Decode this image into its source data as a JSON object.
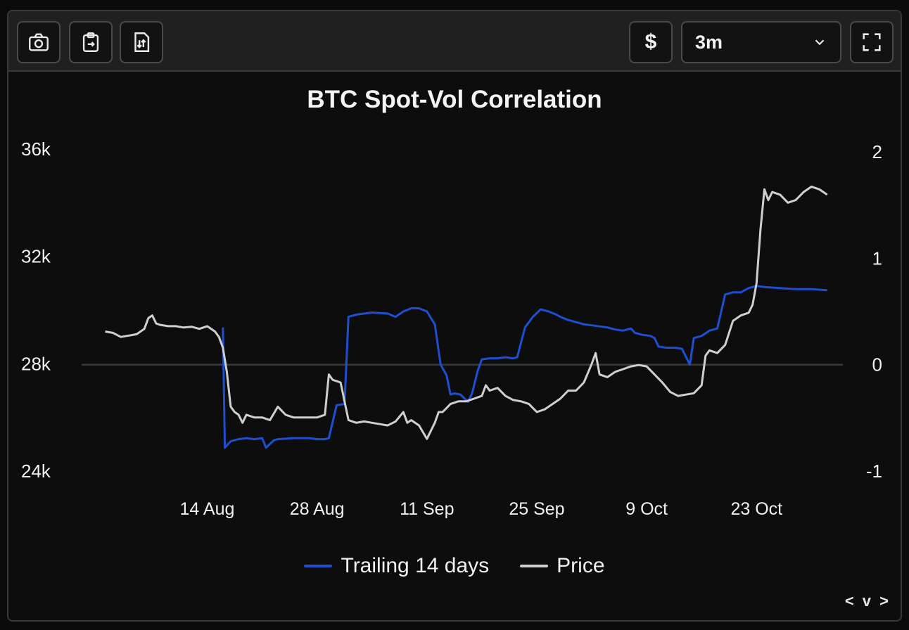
{
  "toolbar": {
    "left_icons": [
      "camera-icon",
      "clipboard-icon",
      "download-icon"
    ],
    "currency_label": "$",
    "range": {
      "selected": "3m"
    },
    "fullscreen_icon": "fullscreen-icon"
  },
  "chart_data": {
    "type": "line",
    "title": "BTC Spot-Vol Correlation",
    "x_ticks": [
      "14 Aug",
      "28 Aug",
      "11 Sep",
      "25 Sep",
      "9 Oct",
      "23 Oct"
    ],
    "y_left_ticks": [
      "36k",
      "32k",
      "28k",
      "24k"
    ],
    "y_right_ticks": [
      "2",
      "1",
      "0",
      "-1"
    ],
    "y_left_range": [
      24000,
      36000
    ],
    "y_right_range": [
      -1,
      2
    ],
    "zero_line": true,
    "legend_position": "bottom",
    "series": [
      {
        "name": "Trailing 14 days",
        "axis": "right",
        "color": "#1f4fd1",
        "points": [
          [
            "2023-08-16T00",
            0.35
          ],
          [
            "2023-08-16T06",
            -0.78
          ],
          [
            "2023-08-17T00",
            -0.72
          ],
          [
            "2023-08-18T00",
            -0.7
          ],
          [
            "2023-08-19T00",
            -0.69
          ],
          [
            "2023-08-20T00",
            -0.7
          ],
          [
            "2023-08-21T00",
            -0.69
          ],
          [
            "2023-08-21T12",
            -0.78
          ],
          [
            "2023-08-22T12",
            -0.71
          ],
          [
            "2023-08-23T00",
            -0.7
          ],
          [
            "2023-08-25T00",
            -0.69
          ],
          [
            "2023-08-27T00",
            -0.69
          ],
          [
            "2023-08-28T00",
            -0.7
          ],
          [
            "2023-08-29T00",
            -0.7
          ],
          [
            "2023-08-29T12",
            -0.69
          ],
          [
            "2023-08-30T12",
            -0.38
          ],
          [
            "2023-08-31T12",
            -0.37
          ],
          [
            "2023-09-01T00",
            0.45
          ],
          [
            "2023-09-02T00",
            0.47
          ],
          [
            "2023-09-04T00",
            0.49
          ],
          [
            "2023-09-06T00",
            0.48
          ],
          [
            "2023-09-07T00",
            0.45
          ],
          [
            "2023-09-08T00",
            0.5
          ],
          [
            "2023-09-09T00",
            0.53
          ],
          [
            "2023-09-10T00",
            0.53
          ],
          [
            "2023-09-11T00",
            0.5
          ],
          [
            "2023-09-12T00",
            0.38
          ],
          [
            "2023-09-12T18",
            0.0
          ],
          [
            "2023-09-13T12",
            -0.1
          ],
          [
            "2023-09-14T00",
            -0.28
          ],
          [
            "2023-09-14T12",
            -0.27
          ],
          [
            "2023-09-15T06",
            -0.28
          ],
          [
            "2023-09-16T06",
            -0.35
          ],
          [
            "2023-09-16T18",
            -0.27
          ],
          [
            "2023-09-17T12",
            -0.05
          ],
          [
            "2023-09-18T00",
            0.05
          ],
          [
            "2023-09-19T00",
            0.06
          ],
          [
            "2023-09-20T00",
            0.06
          ],
          [
            "2023-09-21T00",
            0.07
          ],
          [
            "2023-09-22T00",
            0.06
          ],
          [
            "2023-09-22T12",
            0.07
          ],
          [
            "2023-09-23T12",
            0.35
          ],
          [
            "2023-09-24T12",
            0.45
          ],
          [
            "2023-09-25T12",
            0.52
          ],
          [
            "2023-09-26T12",
            0.5
          ],
          [
            "2023-09-27T12",
            0.47
          ],
          [
            "2023-09-28T00",
            0.45
          ],
          [
            "2023-09-29T00",
            0.42
          ],
          [
            "2023-10-01T00",
            0.38
          ],
          [
            "2023-10-03T00",
            0.36
          ],
          [
            "2023-10-04T00",
            0.35
          ],
          [
            "2023-10-05T00",
            0.33
          ],
          [
            "2023-10-06T00",
            0.32
          ],
          [
            "2023-10-07T00",
            0.34
          ],
          [
            "2023-10-07T12",
            0.3
          ],
          [
            "2023-10-08T12",
            0.28
          ],
          [
            "2023-10-09T12",
            0.27
          ],
          [
            "2023-10-10T00",
            0.25
          ],
          [
            "2023-10-10T12",
            0.17
          ],
          [
            "2023-10-11T12",
            0.16
          ],
          [
            "2023-10-12T12",
            0.16
          ],
          [
            "2023-10-13T12",
            0.15
          ],
          [
            "2023-10-14T12",
            0.0
          ],
          [
            "2023-10-15T00",
            0.25
          ],
          [
            "2023-10-16T00",
            0.27
          ],
          [
            "2023-10-17T00",
            0.32
          ],
          [
            "2023-10-18T00",
            0.34
          ],
          [
            "2023-10-19T00",
            0.66
          ],
          [
            "2023-10-20T00",
            0.68
          ],
          [
            "2023-10-21T00",
            0.68
          ],
          [
            "2023-10-22T00",
            0.72
          ],
          [
            "2023-10-23T00",
            0.74
          ],
          [
            "2023-10-24T00",
            0.73
          ],
          [
            "2023-10-26T00",
            0.72
          ],
          [
            "2023-10-28T00",
            0.71
          ],
          [
            "2023-10-30T00",
            0.71
          ],
          [
            "2023-11-01T00",
            0.7
          ]
        ]
      },
      {
        "name": "Price",
        "axis": "left",
        "color": "#cfcfcf",
        "points": [
          [
            "2023-08-01T00",
            29200
          ],
          [
            "2023-08-02T00",
            29150
          ],
          [
            "2023-08-03T00",
            29000
          ],
          [
            "2023-08-04T00",
            29050
          ],
          [
            "2023-08-05T00",
            29100
          ],
          [
            "2023-08-06T00",
            29300
          ],
          [
            "2023-08-06T12",
            29700
          ],
          [
            "2023-08-07T00",
            29800
          ],
          [
            "2023-08-07T12",
            29500
          ],
          [
            "2023-08-08T00",
            29450
          ],
          [
            "2023-08-09T00",
            29400
          ],
          [
            "2023-08-10T00",
            29400
          ],
          [
            "2023-08-11T00",
            29350
          ],
          [
            "2023-08-12T00",
            29380
          ],
          [
            "2023-08-13T00",
            29300
          ],
          [
            "2023-08-14T00",
            29400
          ],
          [
            "2023-08-15T00",
            29200
          ],
          [
            "2023-08-15T12",
            29000
          ],
          [
            "2023-08-16T00",
            28600
          ],
          [
            "2023-08-16T12",
            27700
          ],
          [
            "2023-08-17T00",
            26400
          ],
          [
            "2023-08-17T12",
            26200
          ],
          [
            "2023-08-18T00",
            26100
          ],
          [
            "2023-08-18T12",
            25800
          ],
          [
            "2023-08-19T00",
            26100
          ],
          [
            "2023-08-20T00",
            26000
          ],
          [
            "2023-08-21T00",
            26000
          ],
          [
            "2023-08-22T00",
            25900
          ],
          [
            "2023-08-23T00",
            26400
          ],
          [
            "2023-08-24T00",
            26100
          ],
          [
            "2023-08-25T00",
            26000
          ],
          [
            "2023-08-26T00",
            26000
          ],
          [
            "2023-08-27T00",
            26000
          ],
          [
            "2023-08-28T00",
            26000
          ],
          [
            "2023-08-29T00",
            26100
          ],
          [
            "2023-08-29T12",
            27600
          ],
          [
            "2023-08-30T00",
            27400
          ],
          [
            "2023-08-31T00",
            27300
          ],
          [
            "2023-09-01T00",
            25900
          ],
          [
            "2023-09-02T00",
            25800
          ],
          [
            "2023-09-03T00",
            25850
          ],
          [
            "2023-09-04T00",
            25800
          ],
          [
            "2023-09-05T00",
            25750
          ],
          [
            "2023-09-06T00",
            25700
          ],
          [
            "2023-09-07T00",
            25850
          ],
          [
            "2023-09-08T00",
            26200
          ],
          [
            "2023-09-08T12",
            25800
          ],
          [
            "2023-09-09T00",
            25900
          ],
          [
            "2023-09-10T00",
            25700
          ],
          [
            "2023-09-11T00",
            25200
          ],
          [
            "2023-09-12T00",
            25800
          ],
          [
            "2023-09-12T12",
            26200
          ],
          [
            "2023-09-13T00",
            26200
          ],
          [
            "2023-09-14T00",
            26500
          ],
          [
            "2023-09-15T00",
            26600
          ],
          [
            "2023-09-16T00",
            26600
          ],
          [
            "2023-09-17T00",
            26700
          ],
          [
            "2023-09-18T00",
            26800
          ],
          [
            "2023-09-18T12",
            27200
          ],
          [
            "2023-09-19T00",
            27000
          ],
          [
            "2023-09-20T00",
            27100
          ],
          [
            "2023-09-21T00",
            26800
          ],
          [
            "2023-09-22T00",
            26650
          ],
          [
            "2023-09-23T00",
            26600
          ],
          [
            "2023-09-24T00",
            26500
          ],
          [
            "2023-09-25T00",
            26200
          ],
          [
            "2023-09-26T00",
            26300
          ],
          [
            "2023-09-27T00",
            26500
          ],
          [
            "2023-09-28T00",
            26700
          ],
          [
            "2023-09-29T00",
            27000
          ],
          [
            "2023-09-30T00",
            27000
          ],
          [
            "2023-10-01T00",
            27300
          ],
          [
            "2023-10-02T00",
            28000
          ],
          [
            "2023-10-02T12",
            28400
          ],
          [
            "2023-10-03T00",
            27600
          ],
          [
            "2023-10-04T00",
            27500
          ],
          [
            "2023-10-05T00",
            27700
          ],
          [
            "2023-10-06T00",
            27800
          ],
          [
            "2023-10-07T00",
            27900
          ],
          [
            "2023-10-08T00",
            27950
          ],
          [
            "2023-10-09T00",
            27900
          ],
          [
            "2023-10-10T00",
            27600
          ],
          [
            "2023-10-11T00",
            27300
          ],
          [
            "2023-10-12T00",
            26950
          ],
          [
            "2023-10-13T00",
            26800
          ],
          [
            "2023-10-14T00",
            26850
          ],
          [
            "2023-10-15T00",
            26900
          ],
          [
            "2023-10-16T00",
            27200
          ],
          [
            "2023-10-16T12",
            28300
          ],
          [
            "2023-10-17T00",
            28500
          ],
          [
            "2023-10-18T00",
            28400
          ],
          [
            "2023-10-19T00",
            28700
          ],
          [
            "2023-10-20T00",
            29600
          ],
          [
            "2023-10-21T00",
            29800
          ],
          [
            "2023-10-22T00",
            29900
          ],
          [
            "2023-10-22T12",
            30200
          ],
          [
            "2023-10-23T00",
            31000
          ],
          [
            "2023-10-23T12",
            33000
          ],
          [
            "2023-10-24T00",
            34500
          ],
          [
            "2023-10-24T12",
            34100
          ],
          [
            "2023-10-25T00",
            34400
          ],
          [
            "2023-10-26T00",
            34300
          ],
          [
            "2023-10-27T00",
            34000
          ],
          [
            "2023-10-28T00",
            34100
          ],
          [
            "2023-10-29T00",
            34400
          ],
          [
            "2023-10-30T00",
            34600
          ],
          [
            "2023-10-31T00",
            34500
          ],
          [
            "2023-11-01T00",
            34300
          ]
        ]
      }
    ]
  },
  "legend": {
    "items": [
      {
        "label": "Trailing 14 days",
        "color": "#1f4fd1"
      },
      {
        "label": "Price",
        "color": "#cfcfcf"
      }
    ]
  },
  "pager": {
    "label": "< v >"
  }
}
